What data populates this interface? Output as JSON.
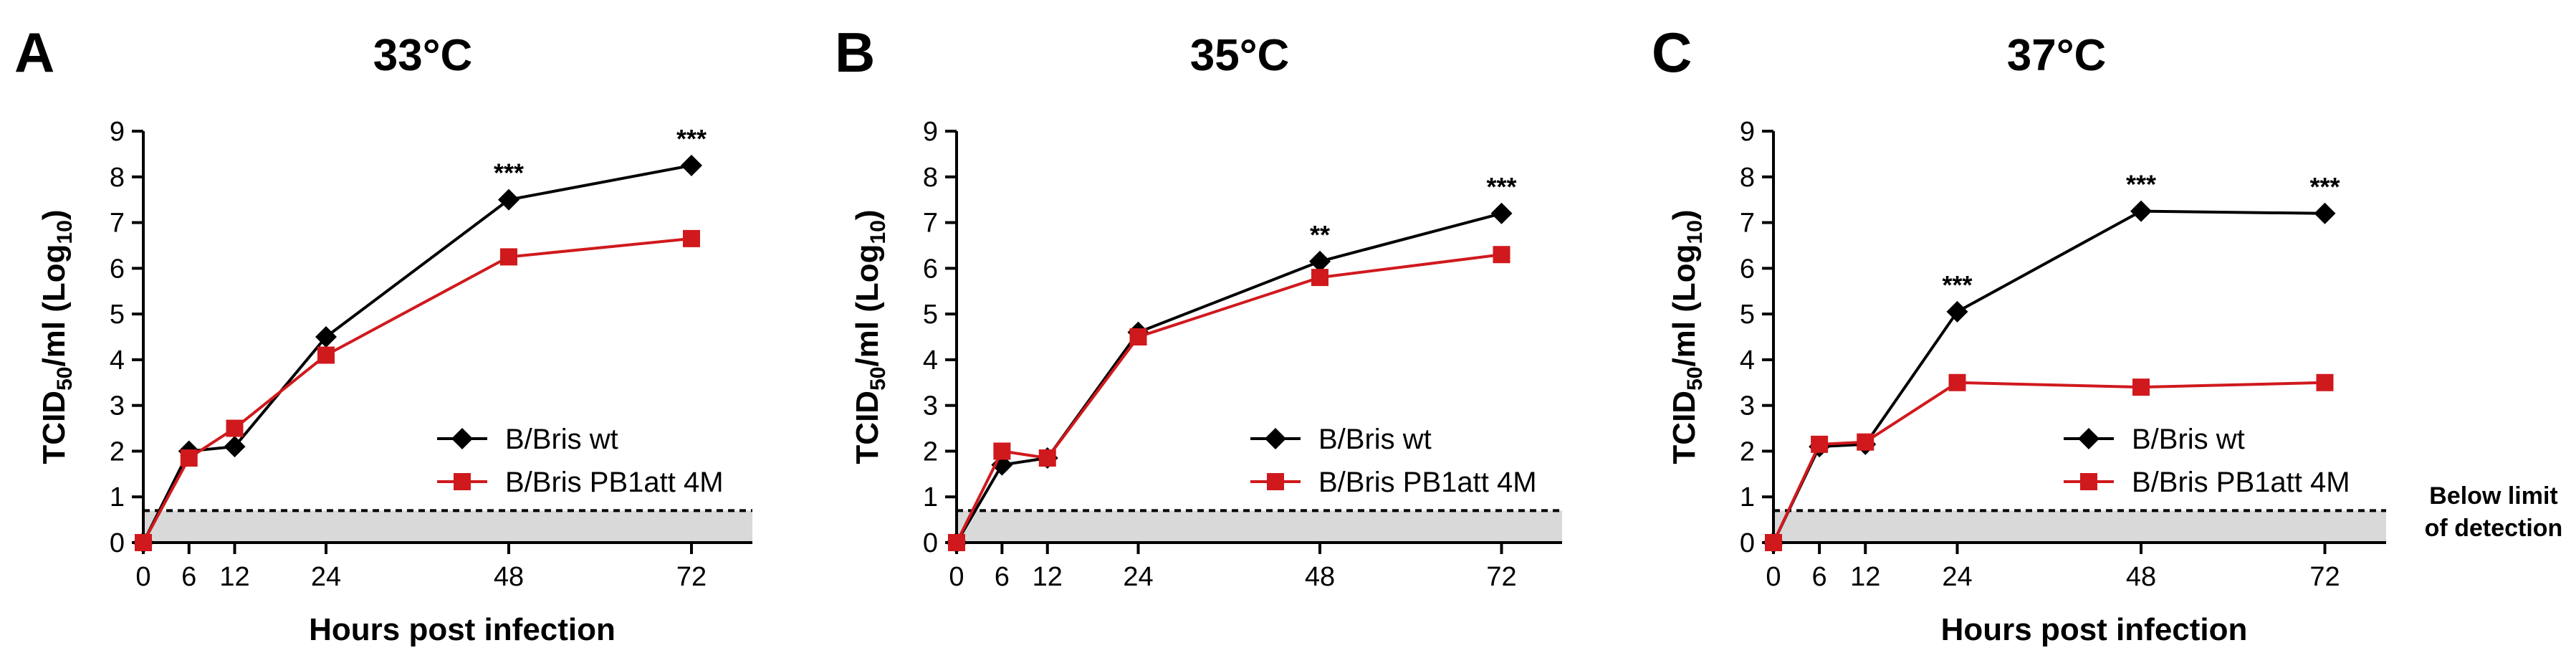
{
  "chart_data": [
    {
      "type": "line",
      "panel_label": "A",
      "title": "33°C",
      "xlabel": "Hours post infection",
      "ylabel_main": "TCID",
      "ylabel_sub": "50",
      "ylabel_mid": "/ml (Log",
      "ylabel_sub2": "10",
      "ylabel_end": ")",
      "x_ticks": [
        0,
        6,
        12,
        24,
        48,
        72
      ],
      "y_ticks": [
        0,
        1,
        2,
        3,
        4,
        5,
        6,
        7,
        8,
        9
      ],
      "xlim": [
        0,
        80
      ],
      "ylim": [
        0,
        9
      ],
      "detection_limit": 0.7,
      "x": [
        0,
        6,
        12,
        24,
        48,
        72
      ],
      "series": [
        {
          "name": "B/Bris wt",
          "color": "#000000",
          "marker": "diamond",
          "values": [
            0,
            2.0,
            2.1,
            4.5,
            7.5,
            8.25
          ]
        },
        {
          "name": "B/Bris PB1att 4M",
          "color": "#d0191d",
          "marker": "square",
          "values": [
            0,
            1.85,
            2.5,
            4.1,
            6.25,
            6.65
          ]
        }
      ],
      "annotations": [
        {
          "x": 48,
          "text": "***"
        },
        {
          "x": 72,
          "text": "***"
        }
      ]
    },
    {
      "type": "line",
      "panel_label": "B",
      "title": "35°C",
      "xlabel": "",
      "ylabel_main": "TCID",
      "ylabel_sub": "50",
      "ylabel_mid": "/ml (Log",
      "ylabel_sub2": "10",
      "ylabel_end": ")",
      "x_ticks": [
        0,
        6,
        12,
        24,
        48,
        72
      ],
      "y_ticks": [
        0,
        1,
        2,
        3,
        4,
        5,
        6,
        7,
        8,
        9
      ],
      "xlim": [
        0,
        80
      ],
      "ylim": [
        0,
        9
      ],
      "detection_limit": 0.7,
      "x": [
        0,
        6,
        12,
        24,
        48,
        72
      ],
      "series": [
        {
          "name": "B/Bris wt",
          "color": "#000000",
          "marker": "diamond",
          "values": [
            0,
            1.7,
            1.85,
            4.6,
            6.15,
            7.2
          ]
        },
        {
          "name": "B/Bris PB1att 4M",
          "color": "#d0191d",
          "marker": "square",
          "values": [
            0,
            2.0,
            1.85,
            4.5,
            5.8,
            6.3
          ]
        }
      ],
      "annotations": [
        {
          "x": 48,
          "text": "**"
        },
        {
          "x": 72,
          "text": "***"
        }
      ]
    },
    {
      "type": "line",
      "panel_label": "C",
      "title": "37°C",
      "xlabel": "Hours post infection",
      "ylabel_main": "TCID",
      "ylabel_sub": "50",
      "ylabel_mid": "/ml (Log",
      "ylabel_sub2": "10",
      "ylabel_end": ")",
      "x_ticks": [
        0,
        6,
        12,
        24,
        48,
        72
      ],
      "y_ticks": [
        0,
        1,
        2,
        3,
        4,
        5,
        6,
        7,
        8,
        9
      ],
      "xlim": [
        0,
        80
      ],
      "ylim": [
        0,
        9
      ],
      "detection_limit": 0.7,
      "x": [
        0,
        6,
        12,
        24,
        48,
        72
      ],
      "series": [
        {
          "name": "B/Bris wt",
          "color": "#000000",
          "marker": "diamond",
          "values": [
            0,
            2.1,
            2.15,
            5.05,
            7.25,
            7.2
          ]
        },
        {
          "name": "B/Bris PB1att 4M",
          "color": "#d0191d",
          "marker": "square",
          "values": [
            0,
            2.15,
            2.2,
            3.5,
            3.4,
            3.5
          ]
        }
      ],
      "annotations": [
        {
          "x": 24,
          "text": "***"
        },
        {
          "x": 48,
          "text": "***"
        },
        {
          "x": 72,
          "text": "***"
        }
      ],
      "lod_label_line1": "Below limit",
      "lod_label_line2": "of detection"
    }
  ]
}
